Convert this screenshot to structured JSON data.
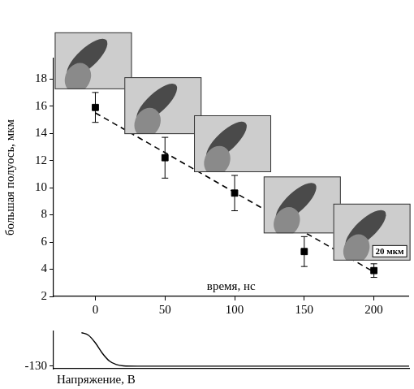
{
  "chart_data": [
    {
      "type": "scatter",
      "xlabel": "время, нс",
      "ylabel": "большая полуось, мкм",
      "xlim": [
        -30,
        225
      ],
      "xticks": [
        0,
        50,
        100,
        150,
        200
      ],
      "ylim": [
        2,
        19.5
      ],
      "yticks": [
        2,
        4,
        6,
        8,
        10,
        12,
        14,
        16,
        18
      ],
      "grid": false,
      "annotations": [
        "20 мкм"
      ],
      "series": [
        {
          "type": "scatter",
          "marker": "square",
          "color": "#000000",
          "x": [
            0,
            50,
            100,
            150,
            200
          ],
          "values": [
            15.9,
            12.2,
            9.6,
            5.3,
            3.9
          ],
          "errors": [
            1.1,
            1.5,
            1.3,
            1.1,
            0.5
          ]
        },
        {
          "type": "line",
          "line_style": "dashed",
          "color": "#000000",
          "x": [
            0,
            200
          ],
          "values": [
            15.5,
            3.8
          ]
        }
      ]
    },
    {
      "type": "line",
      "ylabel": "Напряжение, В",
      "xlim": [
        -30,
        225
      ],
      "ylim": [
        -140,
        5
      ],
      "yticks": [
        -130
      ],
      "grid": false,
      "tick_labels": "y",
      "color": "#000000",
      "x": [
        -10,
        -5,
        0,
        5,
        10,
        15,
        20,
        30,
        225
      ],
      "values": [
        0,
        -10,
        -40,
        -80,
        -110,
        -124,
        -129,
        -130,
        -130
      ]
    }
  ]
}
